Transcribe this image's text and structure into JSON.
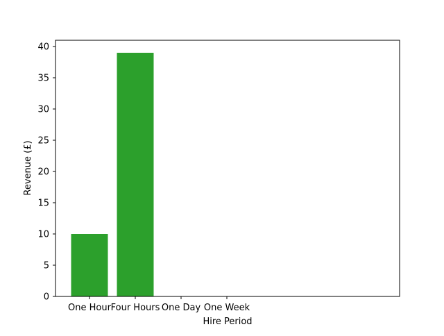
{
  "chart_data": {
    "type": "bar",
    "title": "",
    "xlabel": "Hire Period",
    "ylabel": "Revenue (£)",
    "categories": [
      "One Hour",
      "Four Hours",
      "One Day",
      "One Week"
    ],
    "values": [
      10,
      39,
      0,
      0
    ],
    "ylim": [
      0,
      41
    ],
    "yticks": [
      0,
      5,
      10,
      15,
      20,
      25,
      30,
      35,
      40
    ],
    "bar_color": "#2ca02c",
    "grid": false,
    "legend": "none"
  }
}
